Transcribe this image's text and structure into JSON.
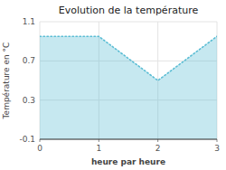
{
  "chart_data": {
    "type": "area",
    "title": "Evolution de la température",
    "xlabel": "heure par heure",
    "ylabel": "Température en °C",
    "x": [
      0,
      1,
      2,
      3
    ],
    "values": [
      0.95,
      0.95,
      0.5,
      0.95
    ],
    "xlim": [
      0,
      3
    ],
    "ylim": [
      -0.1,
      1.1
    ],
    "xticks": [
      0,
      1,
      2,
      3
    ],
    "yticks": [
      -0.1,
      0.3,
      0.7,
      1.1
    ],
    "grid": true,
    "color": "#5bbdd4",
    "line_style": "dotted"
  }
}
